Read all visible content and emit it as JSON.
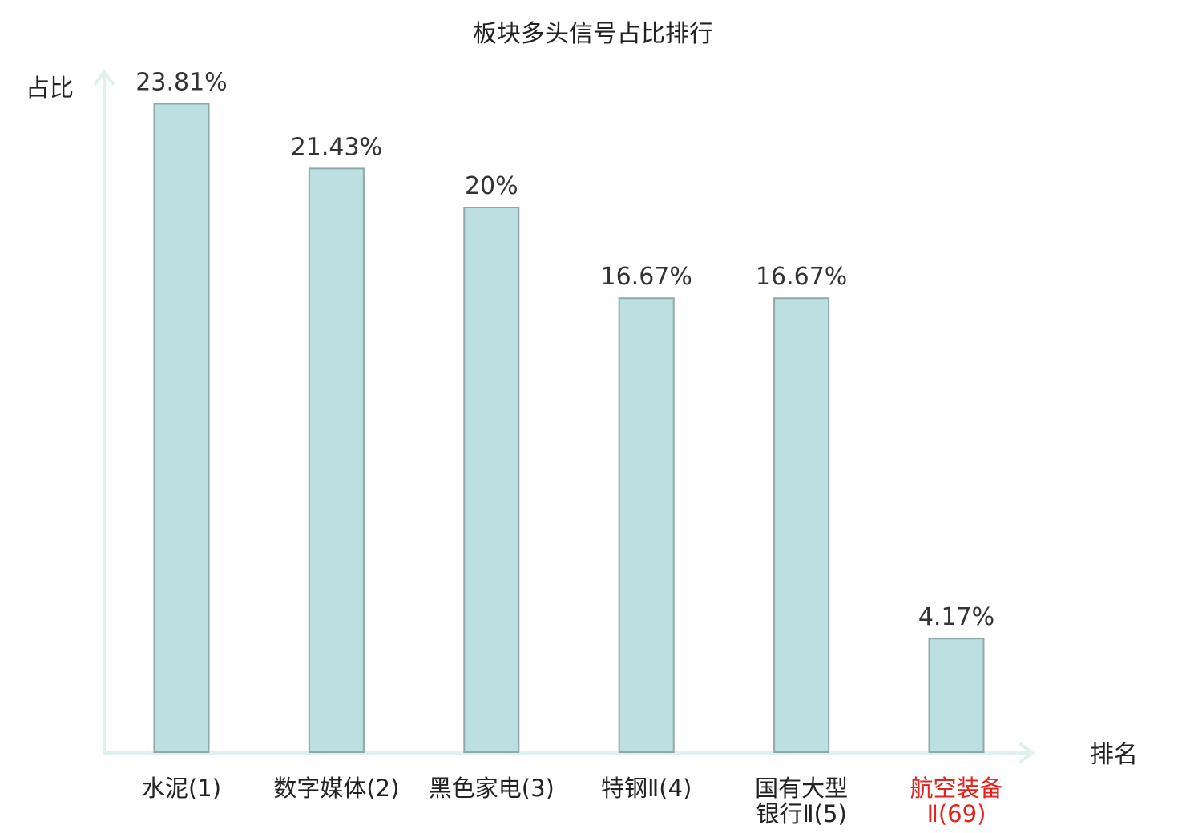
{
  "chart_data": {
    "type": "bar",
    "title": "板块多头信号占比排行",
    "ylabel": "占比",
    "xlabel": "排名",
    "ylim": [
      0,
      25
    ],
    "grid": false,
    "categories": [
      {
        "lines": [
          "水泥(1)"
        ],
        "highlight": false
      },
      {
        "lines": [
          "数字媒体(2)"
        ],
        "highlight": false
      },
      {
        "lines": [
          "黑色家电(3)"
        ],
        "highlight": false
      },
      {
        "lines": [
          "特钢Ⅱ(4)"
        ],
        "highlight": false
      },
      {
        "lines": [
          "国有大型",
          "银行Ⅱ(5)"
        ],
        "highlight": false
      },
      {
        "lines": [
          "航空装备",
          "Ⅱ(69)"
        ],
        "highlight": true
      }
    ],
    "values": [
      23.81,
      21.43,
      20,
      16.67,
      16.67,
      4.17
    ],
    "value_labels": [
      "23.81%",
      "21.43%",
      "20%",
      "16.67%",
      "16.67%",
      "4.17%"
    ],
    "colors": {
      "bar_fill": "#bce0e2",
      "bar_stroke": "#8fa8aa",
      "axis": "#dff0ee",
      "highlight_text": "#e3231f",
      "text": "#222222"
    }
  }
}
